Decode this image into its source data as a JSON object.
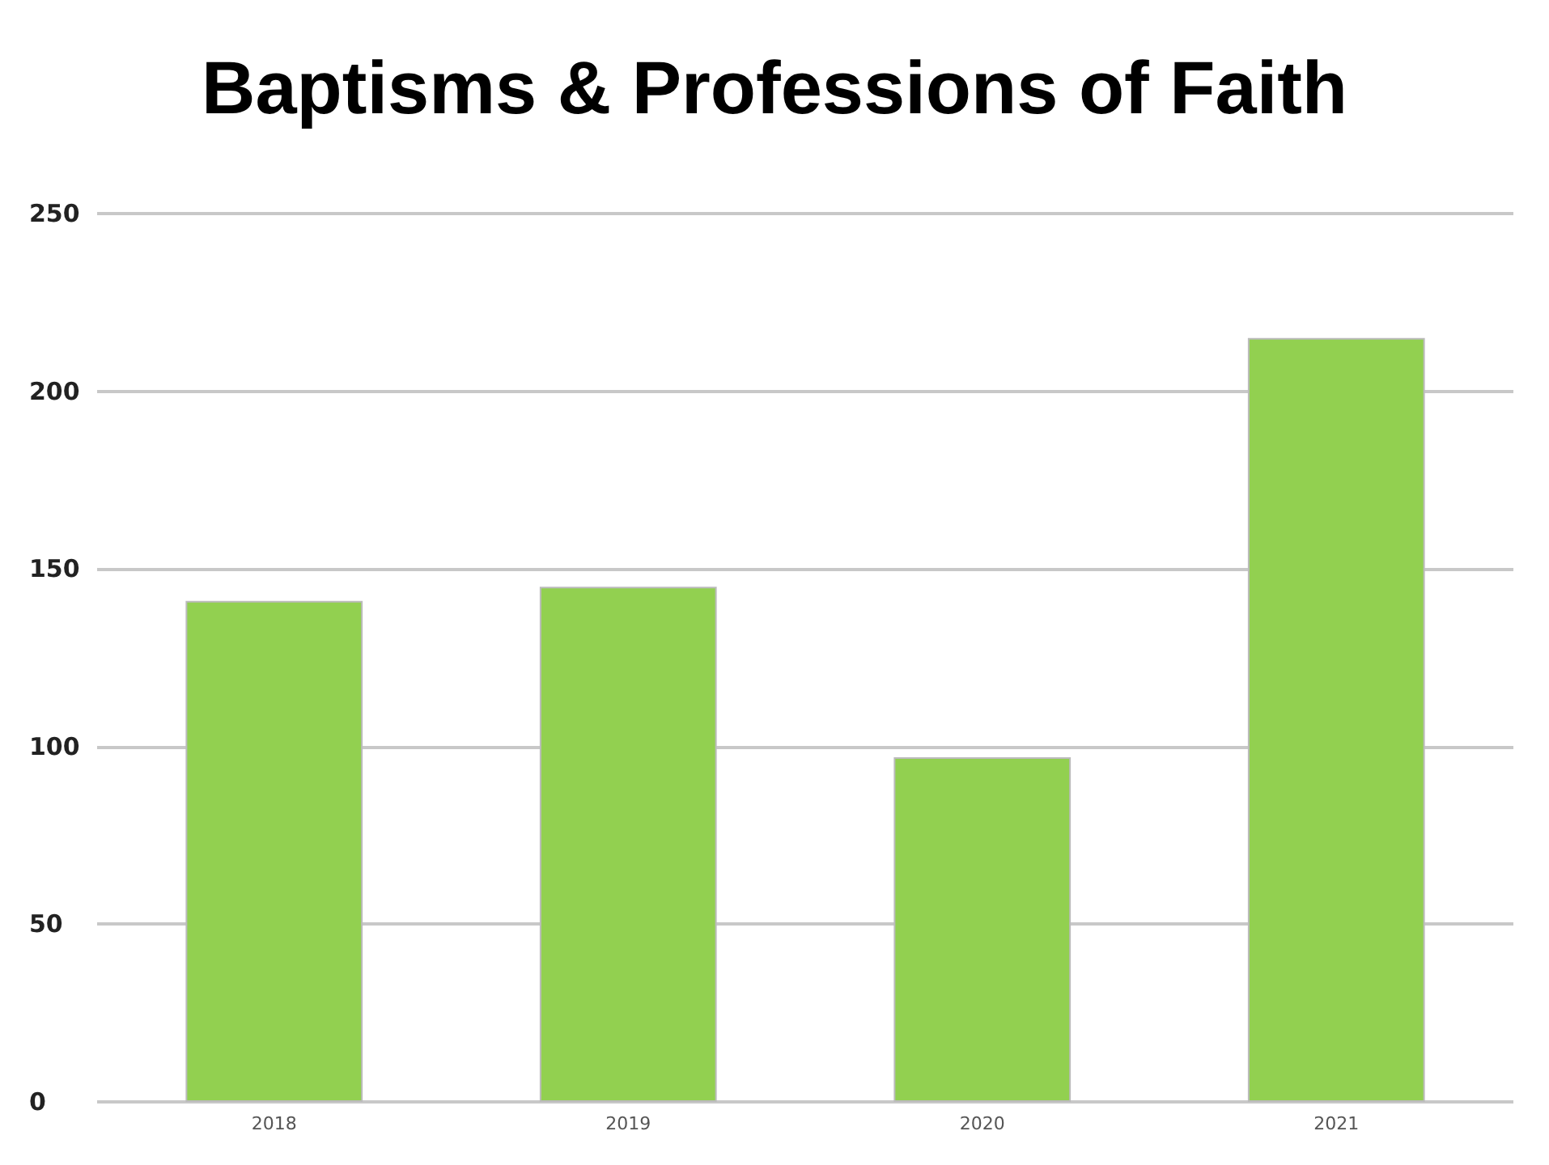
{
  "chart_data": {
    "type": "bar",
    "title": "Baptisms & Professions of Faith",
    "categories": [
      "2018",
      "2019",
      "2020",
      "2021"
    ],
    "values": [
      141,
      145,
      97,
      215
    ],
    "color": "#92d050",
    "ylim": [
      0,
      250
    ],
    "yticks": [
      0,
      50,
      100,
      150,
      200,
      250
    ],
    "grid": "y"
  }
}
